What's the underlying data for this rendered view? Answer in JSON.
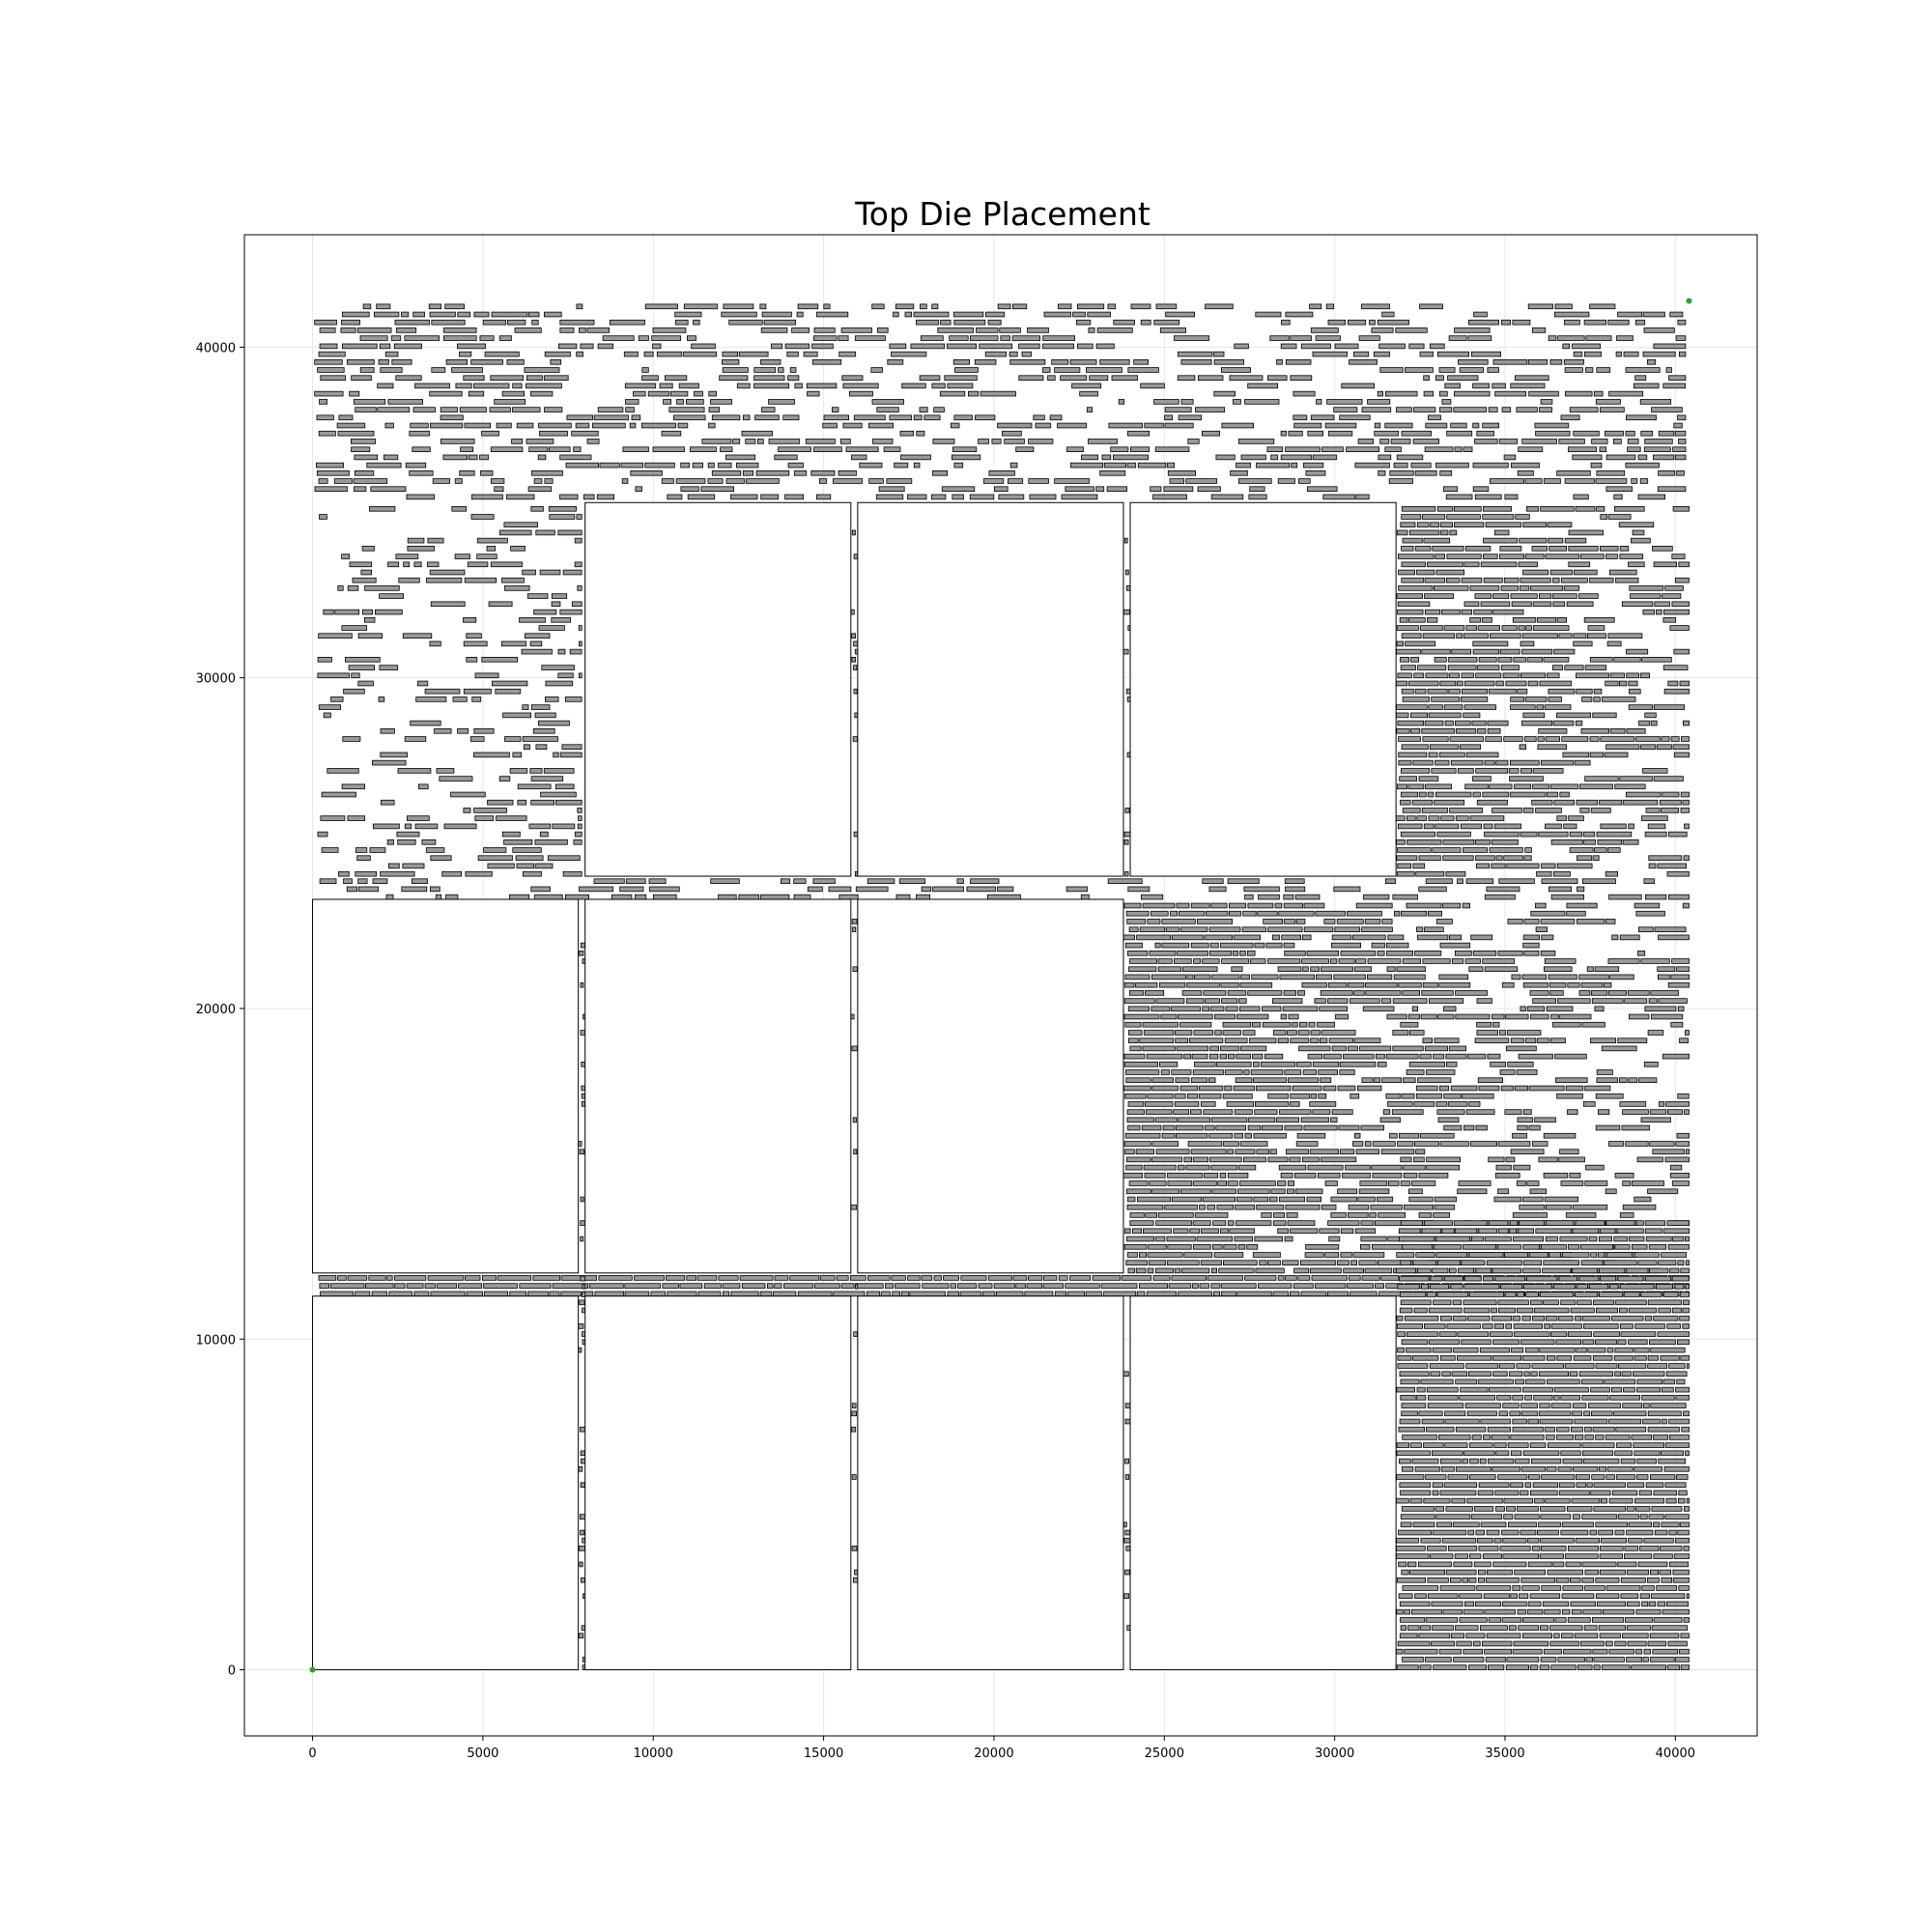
{
  "chart_data": {
    "type": "scatter",
    "title": "Top Die Placement",
    "xlabel": "",
    "ylabel": "",
    "xlim": [
      -2000,
      42400
    ],
    "ylim": [
      -2000,
      43400
    ],
    "x_ticks": [
      0,
      5000,
      10000,
      15000,
      20000,
      25000,
      30000,
      35000,
      40000
    ],
    "x_tick_labels": [
      "0",
      "5000",
      "10000",
      "15000",
      "20000",
      "25000",
      "30000",
      "35000",
      "40000"
    ],
    "y_ticks": [
      0,
      10000,
      20000,
      30000,
      40000
    ],
    "y_tick_labels": [
      "0",
      "10000",
      "20000",
      "30000",
      "40000"
    ],
    "grid": true,
    "legend": "none",
    "colors": {
      "cell_fill": "#999999",
      "cell_edge": "#000000",
      "macro_edge": "#000000",
      "corner_marker": "#2ca02c",
      "grid": "#e6e6e6"
    },
    "macros": [
      {
        "name": "macro-r1c1",
        "x0": 0,
        "y0": 0,
        "x1": 7800,
        "y1": 11300
      },
      {
        "name": "macro-r1c2",
        "x0": 8000,
        "y0": 0,
        "x1": 15800,
        "y1": 11300
      },
      {
        "name": "macro-r1c3",
        "x0": 16000,
        "y0": 0,
        "x1": 23800,
        "y1": 11300
      },
      {
        "name": "macro-r1c4",
        "x0": 24000,
        "y0": 0,
        "x1": 31800,
        "y1": 11300
      },
      {
        "name": "macro-r2c1",
        "x0": 0,
        "y0": 12000,
        "x1": 7800,
        "y1": 23300
      },
      {
        "name": "macro-r2c2",
        "x0": 8000,
        "y0": 12000,
        "x1": 15800,
        "y1": 23300
      },
      {
        "name": "macro-r2c3",
        "x0": 16000,
        "y0": 12000,
        "x1": 23800,
        "y1": 23300
      },
      {
        "name": "macro-r3c2",
        "x0": 8000,
        "y0": 24000,
        "x1": 15800,
        "y1": 35300
      },
      {
        "name": "macro-r3c3",
        "x0": 16000,
        "y0": 24000,
        "x1": 23800,
        "y1": 35300
      },
      {
        "name": "macro-r3c4",
        "x0": 24000,
        "y0": 24000,
        "x1": 31800,
        "y1": 35300
      }
    ],
    "cell_regions": [
      {
        "name": "cells-top-band",
        "x0": 50,
        "x1": 40300,
        "y0": 35400,
        "y1": 41300,
        "density": 0.55,
        "fade": "none"
      },
      {
        "name": "cells-upper-left",
        "x0": 150,
        "x1": 7900,
        "y0": 24000,
        "y1": 35300,
        "density": 0.55,
        "fade": "right-denser"
      },
      {
        "name": "cells-upper-right-block",
        "x0": 31800,
        "x1": 40400,
        "y0": 24000,
        "y1": 35300,
        "density": 1.0,
        "fade": "left-denser"
      },
      {
        "name": "cells-middle-gap",
        "x0": 150,
        "x1": 40400,
        "y0": 23300,
        "y1": 24000,
        "density": 0.5,
        "fade": "none"
      },
      {
        "name": "cells-middle-right",
        "x0": 23800,
        "x1": 40400,
        "y0": 12000,
        "y1": 23300,
        "density": 1.0,
        "fade": "left-denser"
      },
      {
        "name": "cells-channel",
        "x0": 50,
        "x1": 40400,
        "y0": 11300,
        "y1": 12000,
        "density": 1.0,
        "fade": "none"
      },
      {
        "name": "cells-bottom-right-block",
        "x0": 31800,
        "x1": 40400,
        "y0": 0,
        "y1": 13700,
        "density": 1.0,
        "fade": "none"
      },
      {
        "name": "cells-column-gap-1",
        "x0": 7800,
        "x1": 8000,
        "y0": 0,
        "y1": 23300,
        "density": 0.55,
        "fade": "none"
      },
      {
        "name": "cells-column-gap-2",
        "x0": 15800,
        "x1": 16000,
        "y0": 0,
        "y1": 35300,
        "density": 0.35,
        "fade": "none"
      },
      {
        "name": "cells-column-gap-3",
        "x0": 23800,
        "x1": 24000,
        "y0": 0,
        "y1": 11300,
        "density": 0.3,
        "fade": "none"
      },
      {
        "name": "cells-column-gap-4",
        "x0": 23800,
        "x1": 24000,
        "y0": 24000,
        "y1": 35300,
        "density": 0.3,
        "fade": "none"
      }
    ],
    "corner_markers": [
      {
        "x": 0,
        "y": 0
      },
      {
        "x": 40400,
        "y": 41400
      }
    ]
  }
}
